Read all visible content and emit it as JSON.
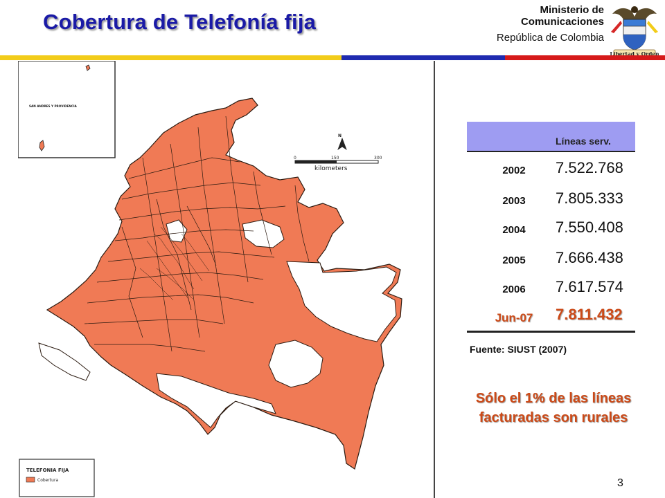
{
  "header": {
    "title": "Cobertura de Telefonía fija",
    "ministry_line1": "Ministerio de",
    "ministry_line2": "Comunicaciones",
    "republic": "República de Colombia",
    "seal_motto": "Libertad y Orden"
  },
  "map": {
    "island_label": "SAN ANDRES Y PROVIDENCIA",
    "scale_ticks": [
      "0",
      "150",
      "300"
    ],
    "scale_unit": "kilometers",
    "north_label": "N",
    "legend_title": "TELEFONIA FIJA",
    "legend_item": "Cobertura",
    "coverage_color": "#f07a55"
  },
  "table": {
    "header_label": "Líneas serv.",
    "rows": [
      {
        "year": "2002",
        "value": "7.522.768"
      },
      {
        "year": "2003",
        "value": "7.805.333"
      },
      {
        "year": "2004",
        "value": "7.550.408"
      },
      {
        "year": "2005",
        "value": "7.666.438"
      },
      {
        "year": "2006",
        "value": "7.617.574"
      },
      {
        "year": "Jun-07",
        "value": "7.811.432"
      }
    ]
  },
  "source": "Fuente: SIUST (2007)",
  "note_line1": "Sólo el 1% de las líneas",
  "note_line2": "facturadas son rurales",
  "page_number": "3",
  "colors": {
    "title": "#1a1aa6",
    "accent": "#cc4a18",
    "table_header": "#9e9cf2",
    "bar_yellow": "#f2cc1a",
    "bar_blue": "#1f2bb0",
    "bar_red": "#d61a1a"
  }
}
